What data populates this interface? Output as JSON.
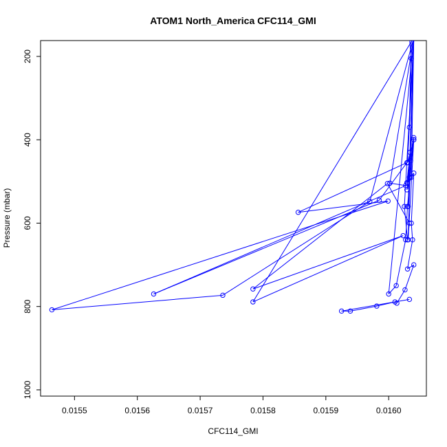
{
  "chart_data": {
    "type": "line",
    "title": "ATOM1 North_America CFC114_GMI",
    "xlabel": "CFC114_GMI",
    "ylabel": "Pressure (mbar)",
    "xlim": [
      0.015446,
      0.01606
    ],
    "ylim": [
      1015,
      162
    ],
    "y_reversed": true,
    "x_ticks": [
      "0.0155",
      "0.0156",
      "0.0157",
      "0.0158",
      "0.0159",
      "0.0160"
    ],
    "x_tick_values": [
      0.0155,
      0.0156,
      0.0157,
      0.0158,
      0.0159,
      0.016
    ],
    "y_ticks": [
      "200",
      "400",
      "600",
      "800",
      "1000"
    ],
    "y_tick_values": [
      200,
      400,
      600,
      800,
      1000
    ],
    "grid": false,
    "legend": "none",
    "series": [
      {
        "color": "#0000ff",
        "markers": "open-circle",
        "x": [
          0.016033,
          0.015925,
          0.015939,
          0.015981,
          0.01601,
          0.016013,
          0.016026,
          0.01604,
          0.01603,
          0.016038,
          0.016036,
          0.01604,
          0.016033,
          0.01603,
          0.016035,
          0.016031,
          0.01604,
          0.016036,
          0.016033,
          0.016036,
          0.016033,
          0.01604,
          0.01604,
          0.01604,
          0.01597,
          0.015736,
          0.015464,
          0.015999,
          0.015856,
          0.016029,
          0.015985,
          0.015626,
          0.016027,
          0.016002,
          0.01604,
          0.016025,
          0.01603,
          0.016033,
          0.015998,
          0.015784,
          0.016023,
          0.015784,
          0.01604,
          0.01604,
          0.016,
          0.016012,
          0.016027,
          0.01603,
          0.016034,
          0.01604,
          0.01603,
          0.01604,
          0.016034,
          0.016029,
          0.01604,
          0.016029,
          0.016036,
          0.01604,
          0.016031,
          0.01604
        ],
        "y": [
          783,
          811,
          811,
          799,
          789,
          792,
          760,
          700,
          710,
          640,
          600,
          480,
          490,
          505,
          450,
          560,
          155,
          155,
          370,
          205,
          155,
          155,
          155,
          155,
          548,
          773,
          808,
          547,
          574,
          455,
          545,
          770,
          510,
          504,
          155,
          560,
          640,
          600,
          505,
          758,
          630,
          789,
          155,
          155,
          770,
          750,
          640,
          560,
          490,
          400,
          455,
          155,
          430,
          503,
          395,
          520,
          490,
          155,
          640,
          400
        ]
      }
    ]
  }
}
